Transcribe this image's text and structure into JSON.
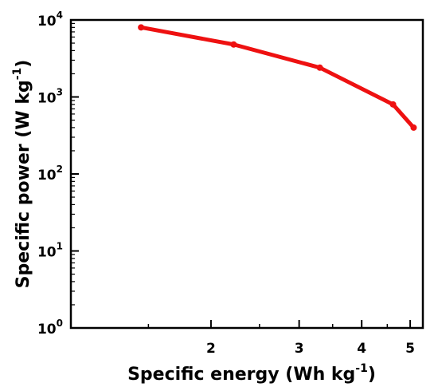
{
  "chart_data": {
    "type": "line",
    "xlabel": {
      "main": "Specific energy (Wh kg",
      "sup": "-1",
      "end": ")"
    },
    "ylabel": {
      "main": "Specific power (W  kg",
      "sup": "-1",
      "end": ")"
    },
    "x_scale": "log",
    "y_scale": "log",
    "xlim": [
      1.05,
      5.3
    ],
    "ylim": [
      1,
      10000
    ],
    "x_ticks": [
      {
        "value": 2,
        "label": "2"
      },
      {
        "value": 3,
        "label": "3"
      },
      {
        "value": 4,
        "label": "4"
      },
      {
        "value": 5,
        "label": "5"
      }
    ],
    "y_ticks": [
      {
        "value": 1,
        "base": "10",
        "exp": "0"
      },
      {
        "value": 10,
        "base": "10",
        "exp": "1"
      },
      {
        "value": 100,
        "base": "10",
        "exp": "2"
      },
      {
        "value": 1000,
        "base": "10",
        "exp": "3"
      },
      {
        "value": 10000,
        "base": "10",
        "exp": "4"
      }
    ],
    "grid": false,
    "series": [
      {
        "color": "#ee1111",
        "points": [
          {
            "x": 1.45,
            "y": 8000
          },
          {
            "x": 2.22,
            "y": 4800
          },
          {
            "x": 3.3,
            "y": 2400
          },
          {
            "x": 4.62,
            "y": 800
          },
          {
            "x": 5.08,
            "y": 400
          }
        ]
      }
    ]
  }
}
